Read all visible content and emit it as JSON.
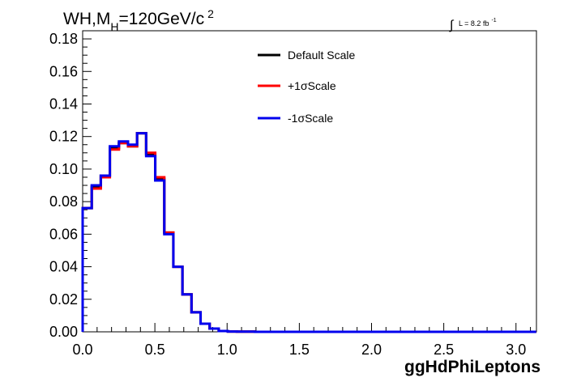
{
  "chart_data": {
    "type": "step",
    "title_text": {
      "prefix": "WH,M",
      "sub": "H",
      "mid": "=120GeV/c",
      "sup": "2"
    },
    "lumi_text": {
      "integral": "∫",
      "main": "L = 8.2 fb",
      "sup": "-1"
    },
    "xlabel": "ggHdPhiLeptons",
    "ylabel": "",
    "xlim": [
      0,
      3.1416
    ],
    "ylim": [
      0,
      0.185
    ],
    "x_ticks": [
      "0.0",
      "0.5",
      "1.0",
      "1.5",
      "2.0",
      "2.5",
      "3.0"
    ],
    "y_ticks": [
      "0.00",
      "0.02",
      "0.04",
      "0.06",
      "0.08",
      "0.10",
      "0.12",
      "0.14",
      "0.16",
      "0.18"
    ],
    "bin_width": 0.0628,
    "series": [
      {
        "name": "Default Scale",
        "color": "#000000",
        "values": [
          0.076,
          0.089,
          0.096,
          0.113,
          0.116,
          0.114,
          0.122,
          0.109,
          0.094,
          0.061,
          0.04,
          0.023,
          0.012,
          0.005,
          0.002,
          0.0005,
          0.0002,
          0.0001,
          0.0001,
          0,
          0,
          0,
          0,
          0,
          0,
          0,
          0,
          0,
          0,
          0,
          0,
          0,
          0,
          0,
          0,
          0,
          0,
          0,
          0,
          0,
          0,
          0,
          0,
          0,
          0,
          0,
          0,
          0,
          0,
          0
        ]
      },
      {
        "name": "+1σScale",
        "color": "#ff0000",
        "values": [
          0.076,
          0.088,
          0.095,
          0.112,
          0.116,
          0.114,
          0.122,
          0.11,
          0.095,
          0.061,
          0.04,
          0.023,
          0.012,
          0.005,
          0.002,
          0.0005,
          0.0002,
          0.0001,
          0.0001,
          0,
          0,
          0,
          0,
          0,
          0,
          0,
          0,
          0,
          0,
          0,
          0,
          0,
          0,
          0,
          0,
          0,
          0,
          0,
          0,
          0,
          0,
          0,
          0,
          0,
          0,
          0,
          0,
          0,
          0,
          0
        ]
      },
      {
        "name": "-1σScale",
        "color": "#0000ee",
        "values": [
          0.076,
          0.09,
          0.096,
          0.114,
          0.117,
          0.115,
          0.122,
          0.108,
          0.093,
          0.06,
          0.04,
          0.023,
          0.012,
          0.005,
          0.002,
          0.0005,
          0.0002,
          0.0001,
          0.0001,
          0,
          0,
          0,
          0,
          0,
          0,
          0,
          0,
          0,
          0,
          0,
          0,
          0,
          0,
          0,
          0,
          0,
          0,
          0,
          0,
          0,
          0,
          0,
          0,
          0,
          0,
          0,
          0,
          0,
          0,
          0
        ]
      }
    ],
    "legend_position": "top-center",
    "grid": false
  }
}
